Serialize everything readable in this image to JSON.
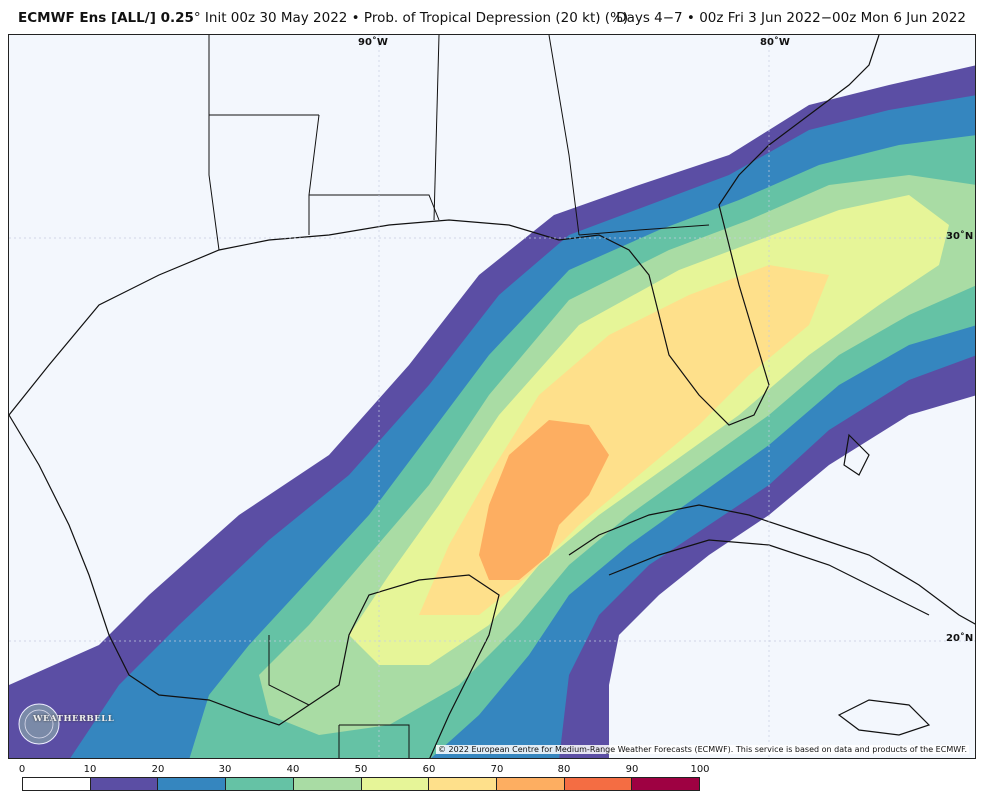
{
  "header": {
    "model": "ECMWF Ens [ALL/] 0.25",
    "degree": "°",
    "init": " Init 00z 30 May 2022 • Prob. of Tropical Depression (20 kt) (%)",
    "valid": "Days 4−7 • 00z Fri 3 Jun 2022−00z Mon 6 Jun 2022"
  },
  "map": {
    "lon_labels": [
      "90˚W",
      "80˚W"
    ],
    "lat_labels": [
      "30˚N",
      "20˚N"
    ],
    "copyright": "© 2022 European Centre for Medium-Range Weather Forecasts (ECMWF). This service is based on data and products of the ECMWF.",
    "logo_text": "WEATHERBELL",
    "colors": {
      "ocean": "#f3f7fd",
      "land": "#f3f7fd",
      "county_lines": "#c8c8d2",
      "border": "#111111"
    }
  },
  "colorbar": {
    "ticks": [
      "0",
      "10",
      "20",
      "30",
      "40",
      "50",
      "60",
      "70",
      "80",
      "90",
      "100"
    ],
    "colors": [
      "#ffffff",
      "#5b4ea4",
      "#3586bf",
      "#65c2a5",
      "#a9dca4",
      "#e6f598",
      "#fee08b",
      "#fdae61",
      "#f46d43",
      "#9e0142"
    ]
  }
}
